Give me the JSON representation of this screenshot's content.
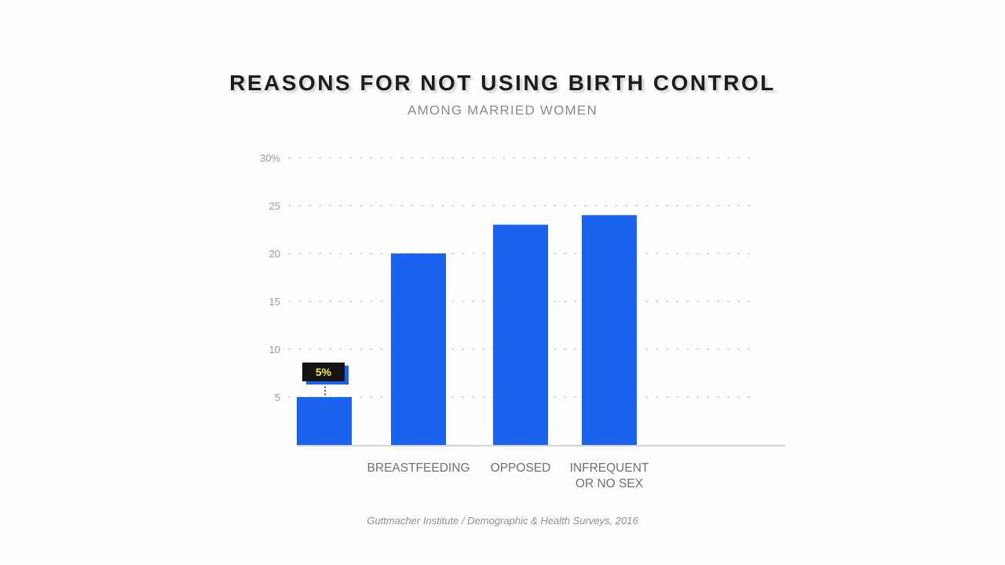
{
  "title": "REASONS FOR NOT USING BIRTH CONTROL",
  "subtitle": "AMONG MARRIED WOMEN",
  "source": "Guttmacher Institute / Demographic & Health Surveys, 2016",
  "chart_data": {
    "type": "bar",
    "title": "REASONS FOR NOT USING BIRTH CONTROL",
    "subtitle": "AMONG MARRIED WOMEN",
    "categories": [
      "",
      "BREASTFEEDING",
      "OPPOSED",
      "INFREQUENT OR NO SEX"
    ],
    "category_lines": [
      [],
      [
        "BREASTFEEDING"
      ],
      [
        "OPPOSED"
      ],
      [
        "INFREQUENT",
        "OR NO SEX"
      ]
    ],
    "values": [
      5,
      20,
      23,
      24
    ],
    "ylim": [
      0,
      30
    ],
    "yticks": [
      5,
      10,
      15,
      20,
      25,
      30
    ],
    "ytick_labels": [
      "5",
      "10",
      "15",
      "20",
      "25",
      "30%"
    ],
    "grid": true,
    "annotation": {
      "bar_index": 0,
      "text": "5%"
    },
    "colors": {
      "bar": "#1a63f0",
      "annotation_bg": "#141414",
      "annotation_text": "#f2f23a"
    }
  }
}
